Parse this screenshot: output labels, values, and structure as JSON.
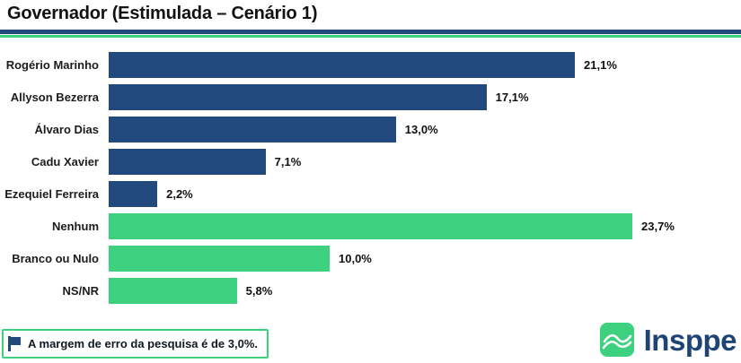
{
  "header": {
    "title": "Governador (Estimulada – Cenário 1)"
  },
  "chart_data": {
    "type": "bar",
    "orientation": "horizontal",
    "title": "Governador (Estimulada – Cenário 1)",
    "categories": [
      "Rogério Marinho",
      "Allyson Bezerra",
      "Álvaro Dias",
      "Cadu Xavier",
      "Ezequiel Ferreira",
      "Nenhum",
      "Branco ou Nulo",
      "NS/NR"
    ],
    "values": [
      21.1,
      17.1,
      13.0,
      7.1,
      2.2,
      23.7,
      10.0,
      5.8
    ],
    "value_labels": [
      "21,1%",
      "17,1%",
      "13,0%",
      "7,1%",
      "2,2%",
      "23,7%",
      "10,0%",
      "5,8%"
    ],
    "groups": [
      "candidate",
      "candidate",
      "candidate",
      "candidate",
      "candidate",
      "other",
      "other",
      "other"
    ],
    "colors": {
      "candidate": "#21497E",
      "other": "#3DD17F"
    },
    "xlim": [
      0,
      28
    ],
    "grid": false,
    "legend": "none",
    "xlabel": "",
    "ylabel": ""
  },
  "decor": {
    "rule_blue": "#21497E",
    "rule_green": "#3DD17F"
  },
  "footnote": {
    "text": "A margem de erro da pesquisa é de 3,0%.",
    "border_color": "#3DD17F",
    "flag_icon_color": "#21497E"
  },
  "logo": {
    "text": "Insppe",
    "icon": "waves-icon",
    "icon_color": "#3DD17F",
    "text_color": "#1E4476"
  }
}
